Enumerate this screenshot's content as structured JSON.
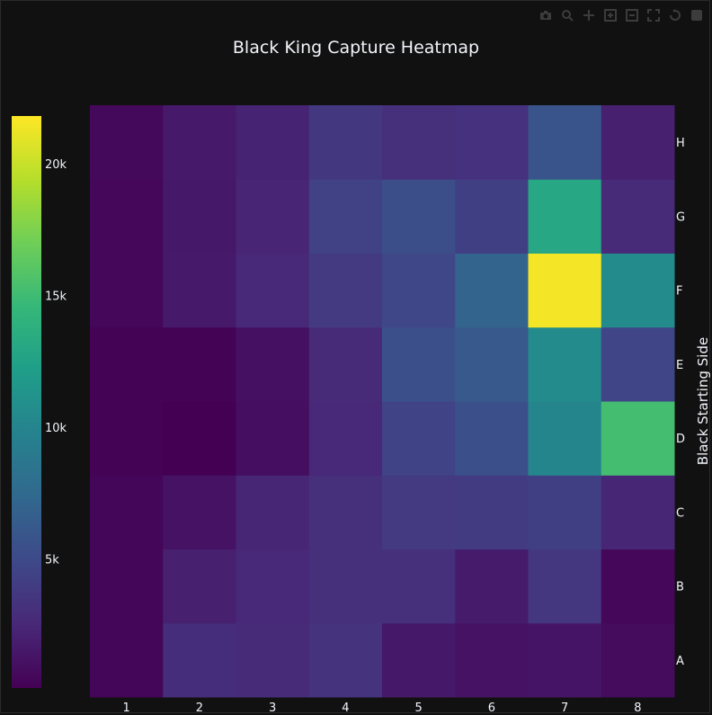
{
  "chart_data": {
    "type": "heatmap",
    "title": "Black King Capture Heatmap",
    "xlabel": "",
    "ylabel": "Black Starting Side",
    "x": [
      "1",
      "2",
      "3",
      "4",
      "5",
      "6",
      "7",
      "8"
    ],
    "y": [
      "A",
      "B",
      "C",
      "D",
      "E",
      "F",
      "G",
      "H"
    ],
    "z": [
      [
        400,
        2900,
        2700,
        3300,
        1500,
        1200,
        1300,
        700
      ],
      [
        400,
        2000,
        2600,
        3100,
        3000,
        1700,
        3500,
        500
      ],
      [
        400,
        1200,
        2400,
        3000,
        3800,
        3900,
        4200,
        2400
      ],
      [
        200,
        100,
        900,
        2600,
        4500,
        5400,
        10000,
        15200
      ],
      [
        200,
        200,
        1000,
        2700,
        5500,
        6200,
        10500,
        4600
      ],
      [
        500,
        1600,
        2600,
        3800,
        4800,
        7000,
        21500,
        10500
      ],
      [
        500,
        1500,
        2300,
        4400,
        5300,
        4200,
        13000,
        2700
      ],
      [
        600,
        1600,
        2200,
        3700,
        3000,
        3200,
        5800,
        2000
      ]
    ],
    "zmin": 100,
    "zmax": 21800,
    "colorscale": "Viridis",
    "colorbar": {
      "ticks": [
        5000,
        10000,
        15000,
        20000
      ],
      "ticktext": [
        "5k",
        "10k",
        "15k",
        "20k"
      ],
      "placement": "left"
    },
    "y_axis_side": "right",
    "grid": false
  },
  "icons": [
    "camera-icon",
    "zoom-icon",
    "pan-icon",
    "zoom-in-icon",
    "zoom-out-icon",
    "autoscale-icon",
    "reset-axes-icon",
    "plotly-logo-icon"
  ],
  "colors": {
    "background": "#111111",
    "text": "#f2f5fa"
  }
}
